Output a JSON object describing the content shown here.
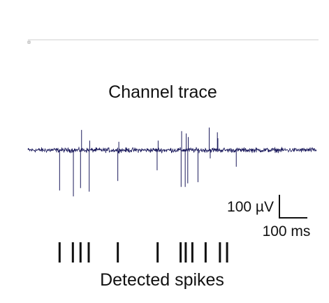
{
  "figure": {
    "trace_title": "Channel trace",
    "spikes_label": "Detected spikes",
    "scale_bar": {
      "amplitude_label": "100 µV",
      "amplitude_value": 100,
      "time_label": "100 ms",
      "time_value": 100
    }
  },
  "chart_data": {
    "type": "line",
    "title": "Channel trace",
    "xlabel": "",
    "ylabel": "",
    "units": {
      "time": "ms",
      "amplitude": "µV"
    },
    "x_range_ms": [
      0,
      565
    ],
    "amplitude_range_uV": [
      -210,
      120
    ],
    "noise_band_uV": 11,
    "series": [
      {
        "name": "",
        "color": "#1b1a5c",
        "events": [
          {
            "t_ms": 62,
            "amp_uV": -170
          },
          {
            "t_ms": 89,
            "amp_uV": -195
          },
          {
            "t_ms": 103,
            "amp_uV": -160
          },
          {
            "t_ms": 105,
            "amp_uV": 85
          },
          {
            "t_ms": 120,
            "amp_uV": -175
          },
          {
            "t_ms": 121,
            "amp_uV": 40
          },
          {
            "t_ms": 176,
            "amp_uV": -130
          },
          {
            "t_ms": 178,
            "amp_uV": 35
          },
          {
            "t_ms": 253,
            "amp_uV": -85
          },
          {
            "t_ms": 255,
            "amp_uV": 40
          },
          {
            "t_ms": 300,
            "amp_uV": -155
          },
          {
            "t_ms": 301,
            "amp_uV": 80
          },
          {
            "t_ms": 308,
            "amp_uV": -155
          },
          {
            "t_ms": 310,
            "amp_uV": 70
          },
          {
            "t_ms": 313,
            "amp_uV": -140
          },
          {
            "t_ms": 314,
            "amp_uV": 55
          },
          {
            "t_ms": 333,
            "amp_uV": -135
          },
          {
            "t_ms": 355,
            "amp_uV": 95
          },
          {
            "t_ms": 357,
            "amp_uV": -35
          },
          {
            "t_ms": 371,
            "amp_uV": 75
          },
          {
            "t_ms": 372,
            "amp_uV": 50
          },
          {
            "t_ms": 408,
            "amp_uV": -70
          }
        ]
      }
    ],
    "detected_spikes_ms": [
      62,
      88,
      103,
      119,
      176,
      254,
      299,
      309,
      322,
      348,
      376,
      390
    ],
    "grid": false,
    "legend": "none"
  }
}
